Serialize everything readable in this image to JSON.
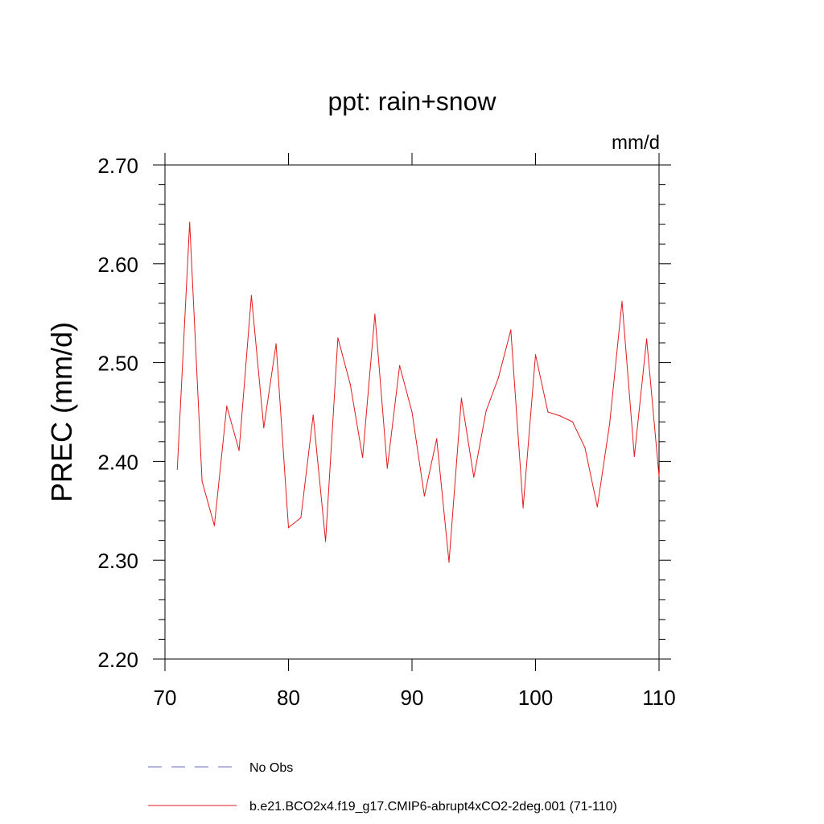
{
  "chart_data": {
    "type": "line",
    "title": "ppt: rain+snow",
    "units": "mm/d",
    "xlabel": "",
    "ylabel": "PREC  (mm/d)",
    "xlim": [
      70,
      110
    ],
    "ylim": [
      2.2,
      2.7
    ],
    "xticks": [
      70,
      80,
      90,
      100,
      110
    ],
    "xtick_labels": [
      "70",
      "80",
      "90",
      "100",
      "110"
    ],
    "yticks": [
      2.2,
      2.3,
      2.4,
      2.5,
      2.6,
      2.7
    ],
    "ytick_labels": [
      "2.20",
      "2.30",
      "2.40",
      "2.50",
      "2.60",
      "2.70"
    ],
    "grid": false,
    "legend_position": "bottom",
    "legend": [
      {
        "label": "No Obs",
        "color": "#6b6bc8",
        "style": "dashed"
      },
      {
        "label": "b.e21.BCO2x4.f19_g17.CMIP6-abrupt4xCO2-2deg.001 (71-110)",
        "color": "#e31a1c",
        "style": "solid"
      }
    ],
    "series": [
      {
        "name": "b.e21.BCO2x4.f19_g17.CMIP6-abrupt4xCO2-2deg.001 (71-110)",
        "color": "#e31a1c",
        "x": [
          71,
          72,
          73,
          74,
          75,
          76,
          77,
          78,
          79,
          80,
          81,
          82,
          83,
          84,
          85,
          86,
          87,
          88,
          89,
          90,
          91,
          92,
          93,
          94,
          95,
          96,
          97,
          98,
          99,
          100,
          101,
          102,
          103,
          104,
          105,
          106,
          107,
          108,
          109,
          110
        ],
        "y": [
          2.392,
          2.642,
          2.38,
          2.335,
          2.456,
          2.411,
          2.568,
          2.434,
          2.519,
          2.333,
          2.343,
          2.447,
          2.319,
          2.525,
          2.478,
          2.404,
          2.549,
          2.393,
          2.497,
          2.45,
          2.365,
          2.423,
          2.298,
          2.464,
          2.384,
          2.451,
          2.485,
          2.533,
          2.353,
          2.508,
          2.45,
          2.446,
          2.44,
          2.414,
          2.354,
          2.438,
          2.562,
          2.405,
          2.524,
          2.385
        ]
      }
    ]
  }
}
